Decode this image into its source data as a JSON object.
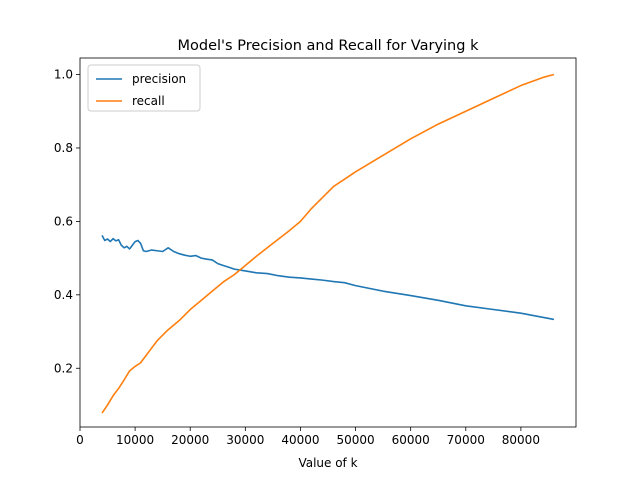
{
  "chart_data": {
    "type": "line",
    "title": "Model's Precision and Recall for Varying k",
    "xlabel": "Value of k",
    "ylabel": "",
    "xlim": [
      0,
      90000
    ],
    "ylim": [
      0.04,
      1.045
    ],
    "x_ticks": [
      0,
      10000,
      20000,
      30000,
      40000,
      50000,
      60000,
      70000,
      80000
    ],
    "x_tick_labels": [
      "0",
      "10000",
      "20000",
      "30000",
      "40000",
      "50000",
      "60000",
      "70000",
      "80000"
    ],
    "y_ticks": [
      0.2,
      0.4,
      0.6,
      0.8,
      1.0
    ],
    "y_tick_labels": [
      "0.2",
      "0.4",
      "0.6",
      "0.8",
      "1.0"
    ],
    "grid": false,
    "legend": "top-left",
    "series": [
      {
        "name": "precision",
        "color": "#1f77b4",
        "x": [
          4000,
          4500,
          5000,
          5500,
          6000,
          6500,
          7000,
          7500,
          8000,
          8500,
          9000,
          9500,
          10000,
          10500,
          11000,
          11500,
          12000,
          13000,
          14000,
          15000,
          16000,
          17000,
          18000,
          19000,
          20000,
          21000,
          22000,
          23000,
          24000,
          25000,
          26000,
          27000,
          28000,
          30000,
          32000,
          34000,
          36000,
          38000,
          40000,
          42000,
          44000,
          46000,
          48000,
          50000,
          55000,
          60000,
          65000,
          70000,
          75000,
          80000,
          86000
        ],
        "y": [
          0.562,
          0.548,
          0.552,
          0.545,
          0.553,
          0.547,
          0.55,
          0.535,
          0.528,
          0.532,
          0.525,
          0.535,
          0.545,
          0.548,
          0.54,
          0.52,
          0.518,
          0.522,
          0.52,
          0.518,
          0.528,
          0.518,
          0.512,
          0.508,
          0.505,
          0.507,
          0.5,
          0.497,
          0.495,
          0.485,
          0.48,
          0.475,
          0.47,
          0.465,
          0.46,
          0.458,
          0.452,
          0.448,
          0.446,
          0.443,
          0.44,
          0.436,
          0.433,
          0.425,
          0.41,
          0.398,
          0.385,
          0.37,
          0.36,
          0.35,
          0.333
        ]
      },
      {
        "name": "recall",
        "color": "#ff7f0e",
        "x": [
          4000,
          5000,
          6000,
          7000,
          8000,
          9000,
          10000,
          11000,
          12000,
          13000,
          14000,
          15000,
          16000,
          18000,
          20000,
          22000,
          24000,
          26000,
          28000,
          30000,
          32000,
          35000,
          38000,
          40000,
          42000,
          44000,
          46000,
          48000,
          50000,
          55000,
          60000,
          65000,
          70000,
          75000,
          80000,
          84000,
          86000
        ],
        "y": [
          0.078,
          0.1,
          0.125,
          0.145,
          0.168,
          0.193,
          0.205,
          0.215,
          0.235,
          0.255,
          0.275,
          0.29,
          0.305,
          0.33,
          0.36,
          0.385,
          0.41,
          0.435,
          0.455,
          0.48,
          0.505,
          0.54,
          0.575,
          0.6,
          0.635,
          0.665,
          0.695,
          0.715,
          0.735,
          0.78,
          0.825,
          0.865,
          0.9,
          0.935,
          0.97,
          0.992,
          1.0
        ]
      }
    ]
  }
}
